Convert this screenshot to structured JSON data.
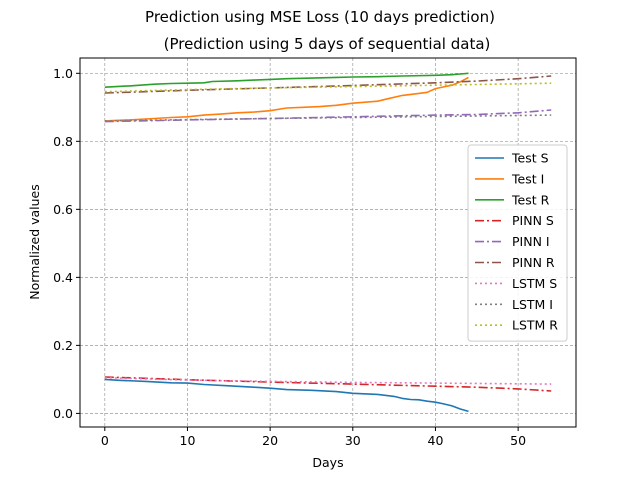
{
  "chart_data": {
    "type": "line",
    "suptitle": "Prediction using MSE Loss (10 days prediction)",
    "title": "(Prediction using 5 days of sequential data)",
    "xlabel": "Days",
    "ylabel": "Normalized values",
    "xlim": [
      -3,
      57
    ],
    "ylim": [
      -0.04,
      1.045
    ],
    "xticks": [
      0,
      10,
      20,
      30,
      40,
      50
    ],
    "yticks": [
      0.0,
      0.2,
      0.4,
      0.6,
      0.8,
      1.0
    ],
    "xtick_labels": [
      "0",
      "10",
      "20",
      "30",
      "40",
      "50"
    ],
    "ytick_labels": [
      "0.0",
      "0.2",
      "0.4",
      "0.6",
      "0.8",
      "1.0"
    ],
    "grid": true,
    "legend_position": "right",
    "series": [
      {
        "name": "Test S",
        "color": "#1f77b4",
        "style": "solid",
        "points": [
          [
            0,
            0.1
          ],
          [
            2,
            0.097
          ],
          [
            5,
            0.094
          ],
          [
            8,
            0.09
          ],
          [
            10,
            0.089
          ],
          [
            12,
            0.085
          ],
          [
            15,
            0.081
          ],
          [
            18,
            0.077
          ],
          [
            20,
            0.074
          ],
          [
            22,
            0.07
          ],
          [
            25,
            0.068
          ],
          [
            28,
            0.064
          ],
          [
            30,
            0.059
          ],
          [
            33,
            0.056
          ],
          [
            35,
            0.05
          ],
          [
            36,
            0.044
          ],
          [
            37,
            0.041
          ],
          [
            38,
            0.04
          ],
          [
            39,
            0.036
          ],
          [
            40,
            0.033
          ],
          [
            41,
            0.028
          ],
          [
            42,
            0.022
          ],
          [
            43,
            0.013
          ],
          [
            44,
            0.006
          ]
        ]
      },
      {
        "name": "Test I",
        "color": "#ff7f0e",
        "style": "solid",
        "points": [
          [
            0,
            0.86
          ],
          [
            3,
            0.863
          ],
          [
            6,
            0.867
          ],
          [
            8,
            0.87
          ],
          [
            10,
            0.872
          ],
          [
            12,
            0.877
          ],
          [
            14,
            0.88
          ],
          [
            16,
            0.884
          ],
          [
            18,
            0.886
          ],
          [
            20,
            0.89
          ],
          [
            22,
            0.898
          ],
          [
            24,
            0.9
          ],
          [
            26,
            0.902
          ],
          [
            28,
            0.906
          ],
          [
            30,
            0.912
          ],
          [
            33,
            0.918
          ],
          [
            34,
            0.924
          ],
          [
            36,
            0.935
          ],
          [
            37,
            0.938
          ],
          [
            38,
            0.941
          ],
          [
            39,
            0.944
          ],
          [
            40,
            0.955
          ],
          [
            41,
            0.96
          ],
          [
            42,
            0.965
          ],
          [
            43,
            0.975
          ],
          [
            44,
            0.988
          ]
        ]
      },
      {
        "name": "Test R",
        "color": "#2ca02c",
        "style": "solid",
        "points": [
          [
            0,
            0.959
          ],
          [
            3,
            0.963
          ],
          [
            6,
            0.968
          ],
          [
            8,
            0.97
          ],
          [
            10,
            0.971
          ],
          [
            12,
            0.972
          ],
          [
            13,
            0.976
          ],
          [
            16,
            0.978
          ],
          [
            18,
            0.98
          ],
          [
            20,
            0.982
          ],
          [
            22,
            0.984
          ],
          [
            25,
            0.986
          ],
          [
            28,
            0.988
          ],
          [
            30,
            0.989
          ],
          [
            33,
            0.99
          ],
          [
            36,
            0.992
          ],
          [
            40,
            0.994
          ],
          [
            42,
            0.996
          ],
          [
            43,
            0.998
          ],
          [
            44,
            1.0
          ]
        ]
      },
      {
        "name": "PINN S",
        "color": "#d62728",
        "style": "dashdot",
        "points": [
          [
            0,
            0.107
          ],
          [
            10,
            0.099
          ],
          [
            20,
            0.092
          ],
          [
            30,
            0.086
          ],
          [
            40,
            0.08
          ],
          [
            45,
            0.077
          ],
          [
            50,
            0.072
          ],
          [
            54,
            0.066
          ]
        ]
      },
      {
        "name": "PINN I",
        "color": "#9467bd",
        "style": "dashdot",
        "points": [
          [
            0,
            0.858
          ],
          [
            10,
            0.863
          ],
          [
            20,
            0.867
          ],
          [
            30,
            0.872
          ],
          [
            40,
            0.877
          ],
          [
            45,
            0.879
          ],
          [
            50,
            0.884
          ],
          [
            54,
            0.892
          ]
        ]
      },
      {
        "name": "PINN R",
        "color": "#8c564b",
        "style": "dashdot",
        "points": [
          [
            0,
            0.942
          ],
          [
            10,
            0.95
          ],
          [
            20,
            0.957
          ],
          [
            30,
            0.964
          ],
          [
            40,
            0.972
          ],
          [
            45,
            0.977
          ],
          [
            50,
            0.984
          ],
          [
            54,
            0.992
          ]
        ]
      },
      {
        "name": "LSTM S",
        "color": "#e377c2",
        "style": "dotted",
        "points": [
          [
            0,
            0.105
          ],
          [
            10,
            0.098
          ],
          [
            20,
            0.094
          ],
          [
            30,
            0.091
          ],
          [
            40,
            0.089
          ],
          [
            50,
            0.087
          ],
          [
            54,
            0.086
          ]
        ]
      },
      {
        "name": "LSTM I",
        "color": "#7f7f7f",
        "style": "dotted",
        "points": [
          [
            0,
            0.86
          ],
          [
            10,
            0.864
          ],
          [
            20,
            0.867
          ],
          [
            30,
            0.87
          ],
          [
            40,
            0.873
          ],
          [
            50,
            0.876
          ],
          [
            54,
            0.877
          ]
        ]
      },
      {
        "name": "LSTM R",
        "color": "#bcbd22",
        "style": "dotted",
        "points": [
          [
            0,
            0.946
          ],
          [
            10,
            0.952
          ],
          [
            20,
            0.957
          ],
          [
            30,
            0.961
          ],
          [
            40,
            0.965
          ],
          [
            50,
            0.969
          ],
          [
            54,
            0.971
          ]
        ]
      }
    ]
  }
}
